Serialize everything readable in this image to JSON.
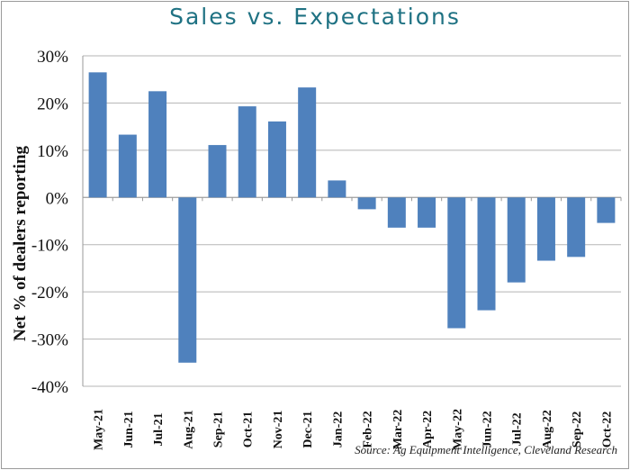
{
  "chart_data": {
    "type": "bar",
    "title": "Sales vs. Expectations",
    "xlabel": "",
    "ylabel": "Net % of dealers reporting",
    "ylim": [
      -40,
      30
    ],
    "yticks": [
      "-40%",
      "-30%",
      "-20%",
      "-10%",
      "0%",
      "10%",
      "20%",
      "30%"
    ],
    "ytick_values": [
      -40,
      -30,
      -20,
      -10,
      0,
      10,
      20,
      30
    ],
    "grid": true,
    "categories": [
      "May-21",
      "Jun-21",
      "Jul-21",
      "Aug-21",
      "Sep-21",
      "Oct-21",
      "Nov-21",
      "Dec-21",
      "Jan-22",
      "Feb-22",
      "Mar-22",
      "Apr-22",
      "May-22",
      "Jun-22",
      "Jul-22",
      "Aug-22",
      "Sep-22",
      "Oct-22"
    ],
    "values": [
      26.5,
      13.3,
      22.5,
      -35.0,
      11.1,
      19.3,
      16.1,
      23.3,
      3.6,
      -2.5,
      -6.4,
      -6.4,
      -27.7,
      -23.9,
      -18.0,
      -13.4,
      -12.6,
      -5.4
    ],
    "bar_color": "#4f81bd",
    "source": "Source: Ag Equipment Intelligence, Cleveland Research"
  }
}
